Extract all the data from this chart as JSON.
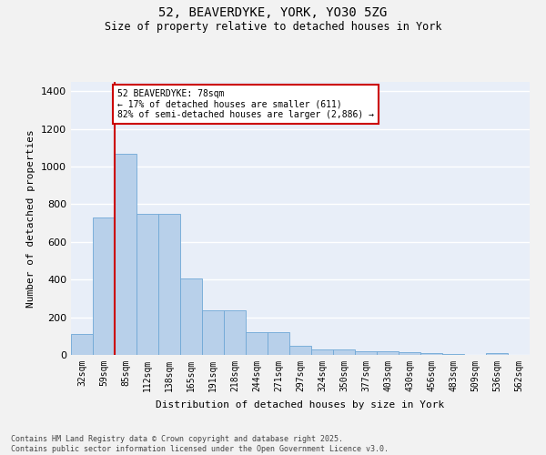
{
  "title_line1": "52, BEAVERDYKE, YORK, YO30 5ZG",
  "title_line2": "Size of property relative to detached houses in York",
  "xlabel": "Distribution of detached houses by size in York",
  "ylabel": "Number of detached properties",
  "categories": [
    "32sqm",
    "59sqm",
    "85sqm",
    "112sqm",
    "138sqm",
    "165sqm",
    "191sqm",
    "218sqm",
    "244sqm",
    "271sqm",
    "297sqm",
    "324sqm",
    "350sqm",
    "377sqm",
    "403sqm",
    "430sqm",
    "456sqm",
    "483sqm",
    "509sqm",
    "536sqm",
    "562sqm"
  ],
  "values": [
    110,
    730,
    1070,
    750,
    750,
    405,
    235,
    235,
    120,
    120,
    48,
    30,
    30,
    20,
    20,
    15,
    10,
    5,
    0,
    8,
    0
  ],
  "bar_color": "#b8d0ea",
  "bar_edge_color": "#6fa8d6",
  "annotation_box_text": "52 BEAVERDYKE: 78sqm\n← 17% of detached houses are smaller (611)\n82% of semi-detached houses are larger (2,886) →",
  "vline_color": "#cc0000",
  "box_edge_color": "#cc0000",
  "ylim": [
    0,
    1450
  ],
  "yticks": [
    0,
    200,
    400,
    600,
    800,
    1000,
    1200,
    1400
  ],
  "background_color": "#e8eef8",
  "grid_color": "#ffffff",
  "fig_background": "#f2f2f2",
  "footer_line1": "Contains HM Land Registry data © Crown copyright and database right 2025.",
  "footer_line2": "Contains public sector information licensed under the Open Government Licence v3.0."
}
